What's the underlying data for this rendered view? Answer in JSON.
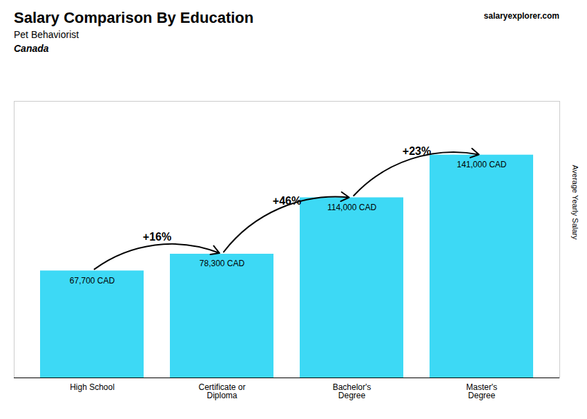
{
  "chart_data": {
    "type": "bar",
    "title": "Salary Comparison By Education",
    "subtitle": "Pet Behaviorist",
    "ylabel": "Average Yearly Salary",
    "categories": [
      "High School",
      "Certificate or\nDiploma",
      "Bachelor's\nDegree",
      "Master's\nDegree"
    ],
    "values": [
      67700,
      78300,
      114000,
      141000
    ],
    "value_labels": [
      "67,700 CAD",
      "78,300 CAD",
      "114,000 CAD",
      "141,000 CAD"
    ],
    "data_labels": true,
    "annotations": [
      {
        "text": "Canada"
      },
      {
        "text": "salaryexplorer.com"
      },
      {
        "text": "+16%",
        "from": "High School",
        "to": "Certificate or\nDiploma"
      },
      {
        "text": "+46%",
        "from": "Certificate or\nDiploma",
        "to": "Bachelor's\nDegree"
      },
      {
        "text": "+23%",
        "from": "Bachelor's\nDegree",
        "to": "Master's\nDegree"
      }
    ],
    "color": "#3dd9f5",
    "ylim": [
      0,
      175000
    ],
    "tick_labels": "x",
    "grid": false
  }
}
